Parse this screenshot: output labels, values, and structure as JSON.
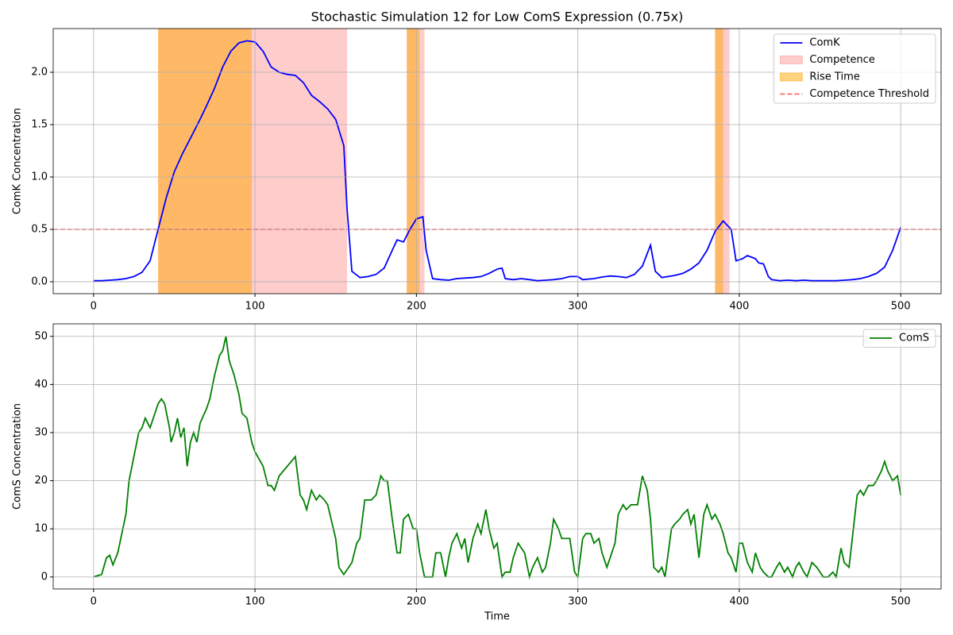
{
  "chart_data": [
    {
      "type": "line",
      "title": "Stochastic Simulation 12 for Low ComS Expression (0.75x)",
      "ylabel": "ComK Concentration",
      "x": [
        0,
        5,
        10,
        15,
        20,
        25,
        30,
        35,
        40,
        45,
        50,
        55,
        60,
        65,
        70,
        75,
        80,
        85,
        90,
        95,
        100,
        105,
        110,
        115,
        120,
        125,
        130,
        135,
        140,
        145,
        150,
        155,
        157,
        160,
        165,
        170,
        175,
        180,
        185,
        188,
        192,
        196,
        200,
        204,
        206,
        210,
        215,
        220,
        225,
        230,
        235,
        240,
        245,
        250,
        253,
        255,
        260,
        265,
        270,
        275,
        280,
        285,
        290,
        295,
        300,
        303,
        310,
        315,
        320,
        325,
        330,
        335,
        340,
        345,
        348,
        352,
        360,
        365,
        370,
        375,
        380,
        385,
        390,
        395,
        397,
        398,
        402,
        405,
        410,
        412,
        415,
        418,
        420,
        425,
        430,
        435,
        440,
        445,
        450,
        455,
        460,
        465,
        470,
        475,
        480,
        485,
        490,
        495,
        500
      ],
      "series": [
        {
          "name": "ComK",
          "color": "#0000ff",
          "values": [
            0.01,
            0.01,
            0.015,
            0.02,
            0.03,
            0.05,
            0.09,
            0.2,
            0.5,
            0.8,
            1.05,
            1.22,
            1.37,
            1.52,
            1.68,
            1.85,
            2.05,
            2.2,
            2.28,
            2.3,
            2.29,
            2.2,
            2.05,
            2.0,
            1.98,
            1.97,
            1.9,
            1.78,
            1.72,
            1.65,
            1.55,
            1.3,
            0.7,
            0.1,
            0.04,
            0.05,
            0.07,
            0.13,
            0.3,
            0.4,
            0.38,
            0.5,
            0.6,
            0.62,
            0.3,
            0.03,
            0.02,
            0.015,
            0.03,
            0.035,
            0.04,
            0.05,
            0.08,
            0.12,
            0.13,
            0.03,
            0.02,
            0.03,
            0.02,
            0.01,
            0.015,
            0.02,
            0.03,
            0.05,
            0.05,
            0.02,
            0.03,
            0.045,
            0.055,
            0.05,
            0.04,
            0.07,
            0.15,
            0.35,
            0.1,
            0.04,
            0.06,
            0.08,
            0.12,
            0.18,
            0.3,
            0.48,
            0.58,
            0.5,
            0.3,
            0.2,
            0.22,
            0.25,
            0.22,
            0.18,
            0.17,
            0.05,
            0.02,
            0.01,
            0.015,
            0.01,
            0.015,
            0.01,
            0.01,
            0.01,
            0.01,
            0.015,
            0.02,
            0.03,
            0.05,
            0.08,
            0.14,
            0.3,
            0.52
          ]
        }
      ],
      "spans": [
        {
          "name": "Competence",
          "color": "#ff0000",
          "alpha": 0.2,
          "ranges": [
            [
              40,
              157
            ],
            [
              194,
              205
            ],
            [
              385,
              394
            ]
          ]
        },
        {
          "name": "Rise Time",
          "color": "#ffa500",
          "alpha": 0.5,
          "ranges": [
            [
              40,
              98
            ],
            [
              194,
              202
            ],
            [
              385,
              390
            ]
          ]
        }
      ],
      "hlines": [
        {
          "name": "Competence Threshold",
          "value": 0.5,
          "color": "#ff0000",
          "alpha": 0.6,
          "style": "dashed"
        }
      ],
      "xlim": [
        -25,
        525
      ],
      "ylim": [
        -0.114,
        2.417
      ],
      "xticks": [
        0,
        100,
        200,
        300,
        400,
        500
      ],
      "yticks": [
        {
          "value": 0,
          "label": "0.0"
        },
        {
          "value": 0.5,
          "label": "0.5"
        },
        {
          "value": 1,
          "label": "1.0"
        },
        {
          "value": 1.5,
          "label": "1.5"
        },
        {
          "value": 2,
          "label": "2.0"
        }
      ],
      "grid": true,
      "legend": "upper right"
    },
    {
      "type": "line",
      "xlabel": "Time",
      "ylabel": "ComS Concentration",
      "x": [
        0,
        5,
        8,
        10,
        12,
        15,
        20,
        22,
        25,
        28,
        30,
        32,
        35,
        40,
        42,
        44,
        47,
        48,
        50,
        52,
        54,
        56,
        58,
        60,
        62,
        64,
        66,
        70,
        72,
        75,
        78,
        80,
        82,
        84,
        87,
        90,
        92,
        95,
        98,
        100,
        105,
        108,
        110,
        112,
        115,
        120,
        125,
        128,
        130,
        132,
        135,
        138,
        140,
        143,
        145,
        150,
        152,
        155,
        160,
        163,
        165,
        168,
        170,
        172,
        175,
        178,
        180,
        182,
        185,
        188,
        190,
        192,
        195,
        198,
        200,
        202,
        205,
        210,
        212,
        215,
        218,
        220,
        222,
        225,
        228,
        230,
        232,
        235,
        238,
        240,
        243,
        245,
        248,
        250,
        253,
        255,
        258,
        260,
        263,
        265,
        267,
        270,
        272,
        275,
        278,
        280,
        283,
        285,
        288,
        290,
        293,
        295,
        298,
        300,
        303,
        305,
        308,
        310,
        313,
        315,
        318,
        320,
        323,
        325,
        328,
        330,
        333,
        337,
        340,
        343,
        345,
        347,
        350,
        352,
        354,
        358,
        360,
        363,
        365,
        368,
        370,
        372,
        375,
        378,
        380,
        383,
        385,
        388,
        390,
        393,
        395,
        398,
        400,
        402,
        405,
        408,
        410,
        413,
        415,
        418,
        420,
        423,
        425,
        428,
        430,
        433,
        435,
        437,
        440,
        442,
        445,
        448,
        450,
        452,
        455,
        458,
        460,
        463,
        465,
        468,
        470,
        473,
        475,
        477,
        480,
        483,
        485,
        488,
        490,
        492,
        495,
        498,
        500
      ],
      "series": [
        {
          "name": "ComS",
          "color": "#008000",
          "values": [
            0,
            0.5,
            4,
            4.5,
            2.5,
            5,
            13,
            20,
            25,
            30,
            31,
            33,
            31,
            36,
            37,
            36,
            31,
            28,
            30,
            33,
            29,
            31,
            23,
            28,
            30,
            28,
            32,
            35,
            37,
            42,
            46,
            47,
            50,
            45,
            42,
            38,
            34,
            33,
            28,
            26,
            23,
            19,
            19,
            18,
            21,
            23,
            25,
            17,
            16,
            14,
            18,
            16,
            17,
            16,
            15,
            8,
            2,
            0.5,
            3,
            7,
            8,
            16,
            16,
            16,
            17,
            21,
            20,
            20,
            12,
            5,
            5,
            12,
            13,
            10,
            10,
            5,
            0,
            0,
            5,
            5,
            0,
            4,
            7,
            9,
            6,
            8,
            3,
            8,
            11,
            9,
            14,
            10,
            6,
            7,
            0,
            1,
            1,
            4,
            7,
            6,
            5,
            0,
            2,
            4,
            1,
            2,
            7,
            12,
            10,
            8,
            8,
            8,
            1,
            0,
            8,
            9,
            9,
            7,
            8,
            5,
            2,
            4,
            7,
            13,
            15,
            14,
            15,
            15,
            21,
            18,
            12,
            2,
            1,
            2,
            0,
            10,
            11,
            12,
            13,
            14,
            11,
            13,
            4,
            13,
            15,
            12,
            13,
            11,
            9,
            5,
            4,
            1,
            7,
            7,
            3,
            1,
            5,
            2,
            1,
            0,
            0,
            2,
            3,
            1,
            2,
            0,
            2,
            3,
            1,
            0,
            3,
            2,
            1,
            0,
            0,
            1,
            0,
            6,
            3,
            2,
            8,
            17,
            18,
            17,
            19,
            19,
            20,
            22,
            24,
            22,
            20,
            21,
            17
          ]
        }
      ],
      "xlim": [
        -25,
        525
      ],
      "ylim": [
        -2.5,
        52.6
      ],
      "xticks": [
        0,
        100,
        200,
        300,
        400,
        500
      ],
      "yticks": [
        0,
        10,
        20,
        30,
        40,
        50
      ],
      "grid": true,
      "legend": "upper right"
    }
  ]
}
